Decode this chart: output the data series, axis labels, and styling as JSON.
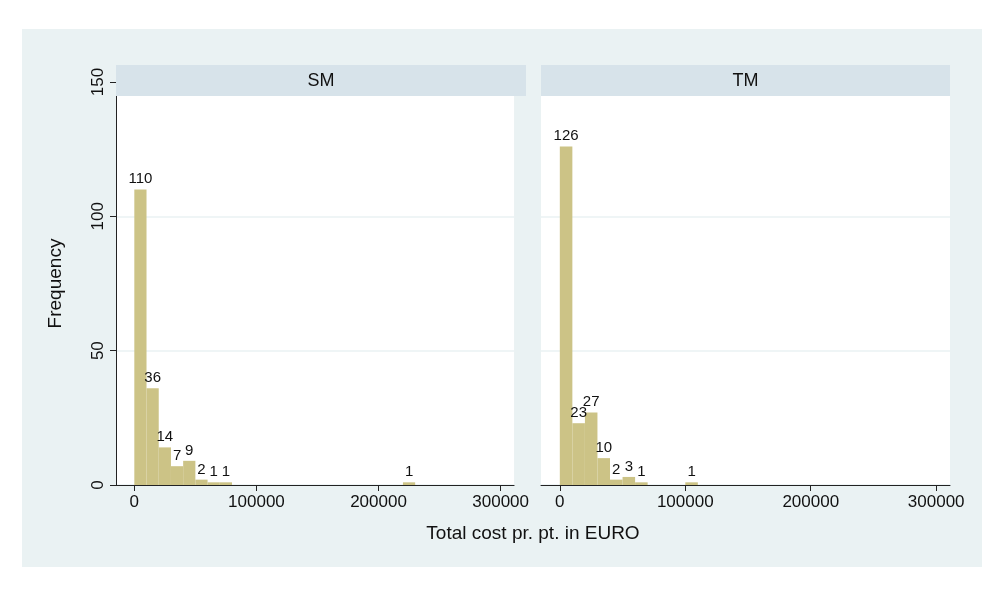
{
  "chart_data": [
    {
      "type": "histogram",
      "title": "SM",
      "xlabel": "Total cost pr. pt. in EURO",
      "ylabel": "Frequency",
      "color": "#ccc386",
      "bins": [
        0,
        10000,
        20000,
        30000,
        40000,
        50000,
        60000,
        70000,
        80000,
        90000,
        100000,
        110000,
        120000,
        130000,
        140000,
        150000,
        160000,
        170000,
        180000,
        190000,
        200000,
        210000,
        220000,
        230000
      ],
      "values": [
        110,
        36,
        14,
        7,
        9,
        2,
        1,
        1,
        0,
        0,
        0,
        0,
        0,
        0,
        0,
        0,
        0,
        0,
        0,
        0,
        0,
        0,
        1
      ],
      "value_labels": [
        "110",
        "36",
        "14",
        "7",
        "9",
        "2",
        "1",
        "1",
        null,
        null,
        null,
        null,
        null,
        null,
        null,
        null,
        null,
        null,
        null,
        null,
        null,
        null,
        "1"
      ],
      "xlim": [
        -15000,
        311000
      ],
      "xticks": [
        0,
        {
          "value": 100000,
          "label": "100000"
        },
        {
          "value": 200000,
          "label": "200000"
        },
        {
          "value": 300000,
          "label": "300000"
        }
      ],
      "ylim": [
        0,
        150
      ],
      "yticks": [
        0,
        50,
        100,
        150
      ],
      "grid": "y"
    },
    {
      "type": "histogram",
      "title": "TM",
      "color": "#ccc386",
      "bins": [
        0,
        10000,
        20000,
        30000,
        40000,
        50000,
        60000,
        70000,
        80000,
        90000,
        100000,
        110000
      ],
      "values": [
        126,
        23,
        27,
        10,
        2,
        3,
        1,
        0,
        0,
        0,
        1
      ],
      "value_labels": [
        "126",
        "23",
        "27",
        "10",
        "2",
        "3",
        "1",
        null,
        null,
        null,
        "1"
      ],
      "xlim": [
        -15000,
        311000
      ],
      "xticks": [
        0,
        {
          "value": 100000,
          "label": "100000"
        },
        {
          "value": 200000,
          "label": "200000"
        },
        {
          "value": 300000,
          "label": "300000"
        }
      ],
      "ylim": [
        0,
        150
      ],
      "yticks": [
        0,
        50,
        100,
        150
      ],
      "grid": "y",
      "tick_labels": "x"
    }
  ]
}
